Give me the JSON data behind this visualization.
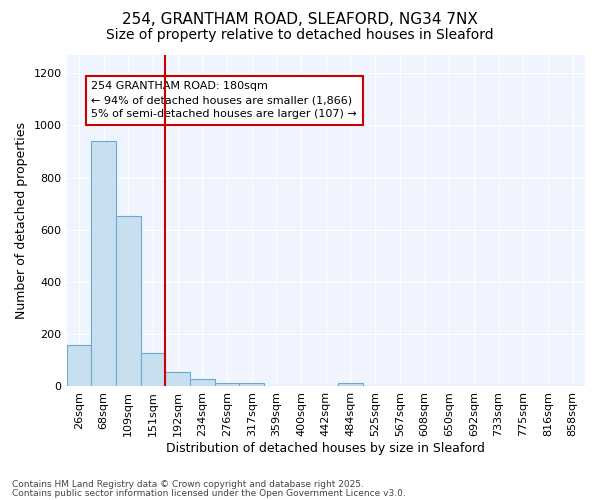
{
  "title_line1": "254, GRANTHAM ROAD, SLEAFORD, NG34 7NX",
  "title_line2": "Size of property relative to detached houses in Sleaford",
  "xlabel": "Distribution of detached houses by size in Sleaford",
  "ylabel": "Number of detached properties",
  "bar_labels": [
    "26sqm",
    "68sqm",
    "109sqm",
    "151sqm",
    "192sqm",
    "234sqm",
    "276sqm",
    "317sqm",
    "359sqm",
    "400sqm",
    "442sqm",
    "484sqm",
    "525sqm",
    "567sqm",
    "608sqm",
    "650sqm",
    "692sqm",
    "733sqm",
    "775sqm",
    "816sqm",
    "858sqm"
  ],
  "bar_heights": [
    160,
    940,
    655,
    130,
    55,
    27,
    12,
    12,
    0,
    0,
    0,
    12,
    0,
    0,
    0,
    0,
    0,
    0,
    0,
    0,
    0
  ],
  "bar_color": "#c8dff0",
  "bar_edge_color": "#6aaad4",
  "red_line_index": 4,
  "red_line_color": "#cc0000",
  "annotation_line1": "254 GRANTHAM ROAD: 180sqm",
  "annotation_line2": "← 94% of detached houses are smaller (1,866)",
  "annotation_line3": "5% of semi-detached houses are larger (107) →",
  "annotation_box_color": "#ffffff",
  "annotation_box_edge": "#cc0000",
  "ylim": [
    0,
    1270
  ],
  "yticks": [
    0,
    200,
    400,
    600,
    800,
    1000,
    1200
  ],
  "bg_color": "#ffffff",
  "plot_bg_color": "#f0f4ff",
  "footer_line1": "Contains HM Land Registry data © Crown copyright and database right 2025.",
  "footer_line2": "Contains public sector information licensed under the Open Government Licence v3.0.",
  "grid_color": "#ffffff",
  "title_fontsize": 11,
  "subtitle_fontsize": 10,
  "axis_label_fontsize": 9,
  "tick_fontsize": 8,
  "annotation_fontsize": 8,
  "footer_fontsize": 6.5
}
